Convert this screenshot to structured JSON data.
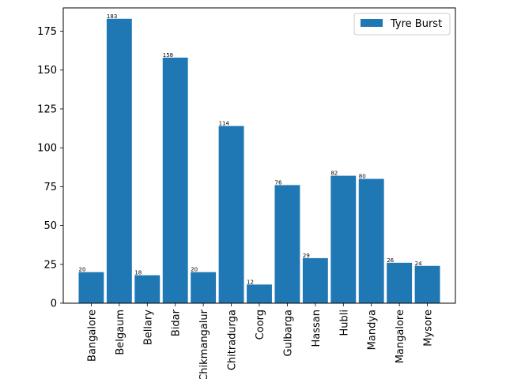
{
  "chart_data": {
    "type": "bar",
    "categories": [
      "Bangalore",
      "Belgaum",
      "Bellary",
      "Bidar",
      "Chikmangalur",
      "Chitradurga",
      "Coorg",
      "Gulbarga",
      "Hassan",
      "Hubli",
      "Mandya",
      "Mangalore",
      "Mysore"
    ],
    "series": [
      {
        "name": "Tyre Burst",
        "values": [
          20,
          183,
          18,
          158,
          20,
          114,
          12,
          76,
          29,
          82,
          80,
          26,
          24
        ],
        "color": "#1f77b4"
      }
    ],
    "ylim": [
      0,
      190
    ],
    "yticks": [
      0,
      25,
      50,
      75,
      100,
      125,
      150,
      175
    ],
    "title": "",
    "xlabel": "",
    "ylabel": "",
    "legend": "top-right",
    "grid": false
  }
}
